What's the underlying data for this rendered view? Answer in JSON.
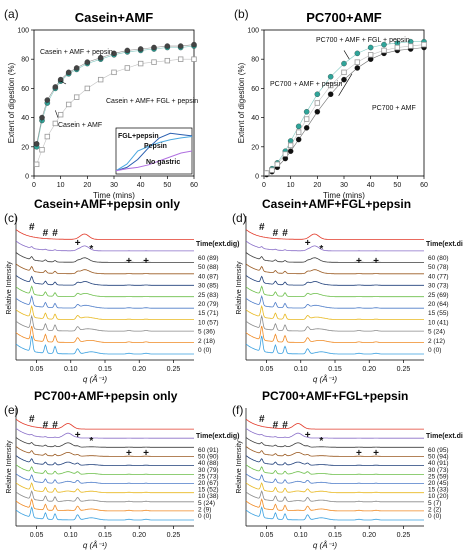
{
  "chart_data": [
    {
      "type": "scatter",
      "panel_letter": "(a)",
      "title": "Casein+AMF",
      "xlabel": "Time (mins)",
      "ylabel": "Extent of digestion (%)",
      "xlim": [
        0,
        60
      ],
      "ylim": [
        0,
        100
      ],
      "xticks": [
        0,
        10,
        20,
        30,
        40,
        50,
        60
      ],
      "yticks": [
        0,
        20,
        40,
        60,
        80,
        100
      ],
      "annotations": [
        "Casein + AMF + pepsin",
        "Casein + AMF",
        "Casein + AMF+ FGL + pepsin"
      ],
      "series": [
        {
          "marker": "circle",
          "color": "#2fa59a",
          "x": [
            1,
            3,
            5,
            8,
            10,
            13,
            16,
            20,
            25,
            30,
            35,
            40,
            45,
            50,
            55,
            60
          ],
          "values": [
            20,
            38,
            50,
            60,
            65,
            70,
            73,
            77,
            80,
            83,
            85,
            86,
            87,
            88,
            88,
            89
          ]
        },
        {
          "marker": "circle",
          "color": "#444444",
          "x": [
            1,
            3,
            5,
            8,
            10,
            13,
            16,
            20,
            25,
            30,
            35,
            40,
            45,
            50,
            55,
            60
          ],
          "values": [
            22,
            40,
            52,
            61,
            66,
            71,
            74,
            78,
            81,
            84,
            86,
            87,
            88,
            89,
            89,
            90
          ]
        },
        {
          "marker": "square",
          "color": "#999999",
          "x": [
            1,
            3,
            5,
            8,
            10,
            13,
            16,
            20,
            25,
            30,
            35,
            40,
            45,
            50,
            55,
            60
          ],
          "values": [
            8,
            18,
            27,
            36,
            42,
            49,
            54,
            60,
            66,
            71,
            74,
            77,
            78,
            79,
            80,
            80
          ]
        }
      ],
      "inset": {
        "labels": [
          "FGL+pepsin",
          "Pepsin",
          "No gastric"
        ],
        "series": [
          {
            "color": "#2a5fb0",
            "x": [
              0,
              1,
              2,
              3,
              4,
              5,
              6,
              7
            ],
            "values": [
              5,
              10,
              22,
              40,
              55,
              62,
              60,
              58
            ]
          },
          {
            "color": "#4aa8e0",
            "x": [
              0,
              1,
              2,
              3,
              4,
              5,
              6,
              7
            ],
            "values": [
              5,
              15,
              35,
              42,
              48,
              52,
              55,
              57
            ]
          },
          {
            "color": "#b070e0",
            "x": [
              0,
              1,
              2,
              3,
              4,
              5,
              6,
              7
            ],
            "values": [
              5,
              8,
              10,
              14,
              20,
              26,
              32,
              35
            ]
          }
        ]
      }
    },
    {
      "type": "scatter",
      "panel_letter": "(b)",
      "title": "PC700+AMF",
      "xlabel": "Time (mins)",
      "ylabel": "Extent of digestion (%)",
      "xlim": [
        0,
        60
      ],
      "ylim": [
        0,
        100
      ],
      "xticks": [
        0,
        10,
        20,
        30,
        40,
        50,
        60
      ],
      "yticks": [
        0,
        20,
        40,
        60,
        80,
        100
      ],
      "annotations": [
        "PC700 + AMF + FGL + pepsin",
        "PC700 + AMF + pepsin",
        "PC700 + AMF"
      ],
      "series": [
        {
          "marker": "circle",
          "color": "#2fa59a",
          "x": [
            1,
            3,
            5,
            8,
            10,
            13,
            16,
            20,
            25,
            30,
            35,
            40,
            45,
            50,
            55,
            60
          ],
          "values": [
            2,
            5,
            9,
            17,
            24,
            34,
            44,
            56,
            68,
            77,
            84,
            88,
            90,
            91,
            92,
            92
          ]
        },
        {
          "marker": "circle",
          "color": "#111111",
          "x": [
            1,
            3,
            5,
            8,
            10,
            13,
            16,
            20,
            25,
            30,
            35,
            40,
            45,
            50,
            55,
            60
          ],
          "values": [
            1,
            3,
            6,
            12,
            17,
            25,
            33,
            44,
            56,
            66,
            74,
            80,
            84,
            86,
            87,
            88
          ]
        },
        {
          "marker": "square",
          "color": "#999999",
          "x": [
            1,
            3,
            5,
            8,
            10,
            13,
            16,
            20,
            25,
            30,
            35,
            40,
            45,
            50,
            55,
            60
          ],
          "values": [
            2,
            4,
            8,
            15,
            21,
            30,
            39,
            50,
            62,
            71,
            78,
            83,
            86,
            88,
            89,
            90
          ]
        }
      ]
    },
    {
      "type": "line",
      "panel_letter": "(c)",
      "title": "Casein+AMF+pepsin only",
      "xlabel": "q (Å⁻¹)",
      "ylabel": "Relative Intensity",
      "xticks": [
        0.05,
        0.1,
        0.15,
        0.2,
        0.25
      ],
      "xlim": [
        0.02,
        0.28
      ],
      "legend_title": "Time(ext.dig)",
      "series_labels": [
        "60 (89)",
        "50 (88)",
        "40 (87)",
        "30 (85)",
        "25 (83)",
        "20 (79)",
        "15 (71)",
        "10 (57)",
        "5 (36)",
        "2 (18)",
        "0 (0)"
      ],
      "peak_markers": [
        {
          "symbol": "#",
          "q": 0.043
        },
        {
          "symbol": "#",
          "q": 0.063
        },
        {
          "symbol": "#",
          "q": 0.077
        },
        {
          "symbol": "+",
          "q": 0.11
        },
        {
          "symbol": "*",
          "q": 0.13
        },
        {
          "symbol": "+",
          "q": 0.185
        },
        {
          "symbol": "+",
          "q": 0.21
        }
      ]
    },
    {
      "type": "line",
      "panel_letter": "(d)",
      "title": "Casein+AMF+FGL+pepsin",
      "xlabel": "q (Å⁻¹)",
      "ylabel": "Relative Intensity",
      "xticks": [
        0.05,
        0.1,
        0.15,
        0.2,
        0.25
      ],
      "xlim": [
        0.02,
        0.28
      ],
      "legend_title": "Time(ext.dig)",
      "series_labels": [
        "60 (80)",
        "50 (78)",
        "40 (77)",
        "30 (73)",
        "25 (69)",
        "20 (64)",
        "15 (55)",
        "10 (41)",
        "5 (24)",
        "2 (12)",
        "0 (0)"
      ],
      "peak_markers": [
        {
          "symbol": "#",
          "q": 0.043
        },
        {
          "symbol": "#",
          "q": 0.063
        },
        {
          "symbol": "#",
          "q": 0.077
        },
        {
          "symbol": "+",
          "q": 0.11
        },
        {
          "symbol": "*",
          "q": 0.13
        },
        {
          "symbol": "+",
          "q": 0.185
        },
        {
          "symbol": "+",
          "q": 0.21
        }
      ]
    },
    {
      "type": "line",
      "panel_letter": "(e)",
      "title": "PC700+AMF+pepsin only",
      "xlabel": "q (Å⁻¹)",
      "ylabel": "Relative Intensity",
      "xticks": [
        0.05,
        0.1,
        0.15,
        0.2,
        0.25
      ],
      "xlim": [
        0.02,
        0.28
      ],
      "legend_title": "Time(ext.dig)",
      "series_labels": [
        "60 (91)",
        "50 (90)",
        "40 (88)",
        "30 (79)",
        "25 (73)",
        "20 (67)",
        "15 (52)",
        "10 (38)",
        "5 (24)",
        "2 (9)",
        "0 (0)"
      ],
      "peak_markers": [
        {
          "symbol": "#",
          "q": 0.043
        },
        {
          "symbol": "#",
          "q": 0.063
        },
        {
          "symbol": "#",
          "q": 0.077
        },
        {
          "symbol": "+",
          "q": 0.11
        },
        {
          "symbol": "*",
          "q": 0.13
        },
        {
          "symbol": "+",
          "q": 0.185
        },
        {
          "symbol": "+",
          "q": 0.21
        }
      ]
    },
    {
      "type": "line",
      "panel_letter": "(f)",
      "title": "PC700+AMF+FGL+pepsin",
      "xlabel": "q (Å⁻¹)",
      "ylabel": "Relative Intensity",
      "xticks": [
        0.05,
        0.1,
        0.15,
        0.2,
        0.25
      ],
      "xlim": [
        0.02,
        0.28
      ],
      "legend_title": "Time(ext.dig)",
      "series_labels": [
        "60 (95)",
        "50 (94)",
        "40 (91)",
        "30 (73)",
        "25 (59)",
        "20 (45)",
        "15 (33)",
        "10 (20)",
        "5 (7)",
        "2 (2)",
        "0 (0)"
      ],
      "peak_markers": [
        {
          "symbol": "#",
          "q": 0.043
        },
        {
          "symbol": "#",
          "q": 0.063
        },
        {
          "symbol": "#",
          "q": 0.077
        },
        {
          "symbol": "+",
          "q": 0.11
        },
        {
          "symbol": "*",
          "q": 0.13
        },
        {
          "symbol": "+",
          "q": 0.185
        },
        {
          "symbol": "+",
          "q": 0.21
        }
      ]
    }
  ],
  "trace_colors": [
    "#3aa0e0",
    "#f08a24",
    "#8a8a8a",
    "#e8b820",
    "#4d7cc8",
    "#6cbf4a",
    "#1f3f7a",
    "#9a5a22",
    "#3f3f3f",
    "#8a6fc8",
    "#e23a2a"
  ]
}
